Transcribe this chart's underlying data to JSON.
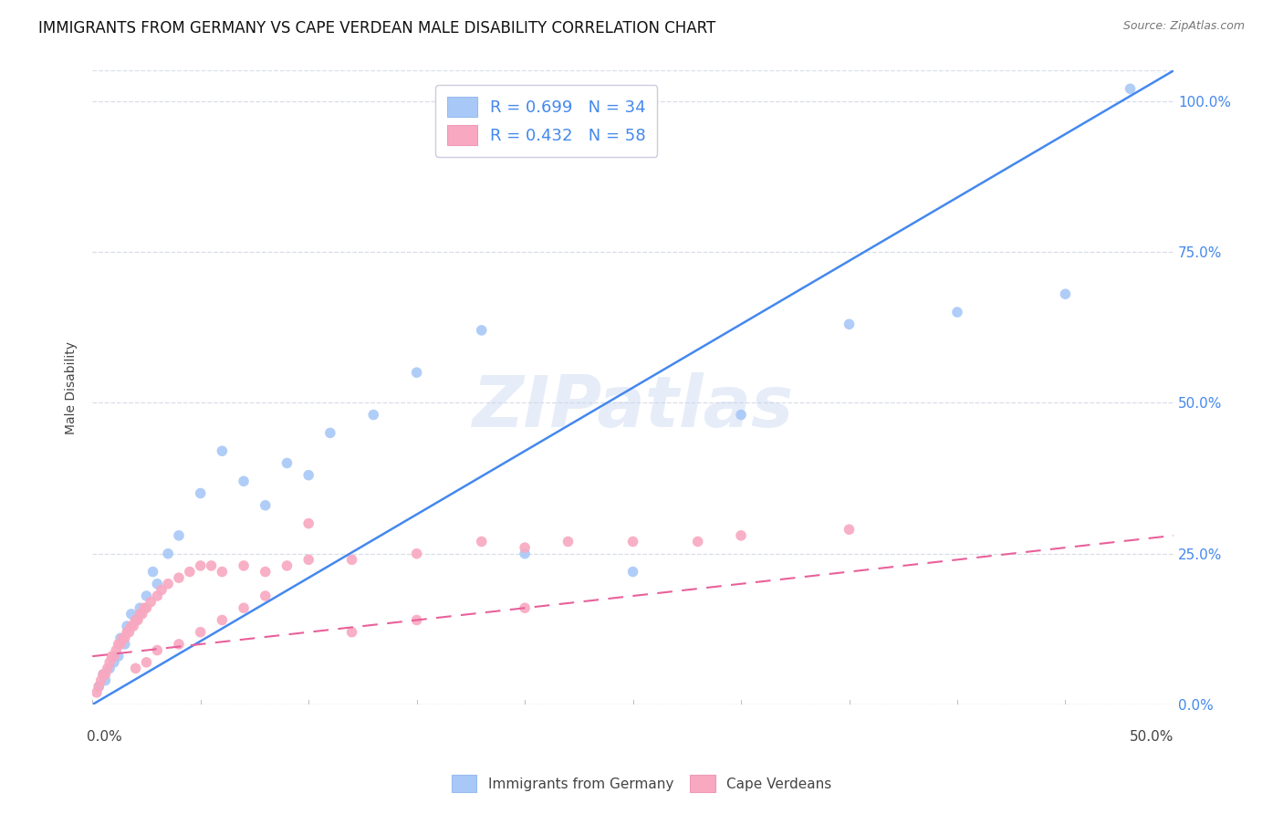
{
  "title": "IMMIGRANTS FROM GERMANY VS CAPE VERDEAN MALE DISABILITY CORRELATION CHART",
  "source": "Source: ZipAtlas.com",
  "ylabel": "Male Disability",
  "yticks": [
    "0.0%",
    "25.0%",
    "50.0%",
    "75.0%",
    "100.0%"
  ],
  "ytick_vals": [
    0,
    25,
    50,
    75,
    100
  ],
  "xlim": [
    0,
    50
  ],
  "ylim": [
    0,
    105
  ],
  "blue_color": "#a8c8f8",
  "blue_line_color": "#4488ee",
  "pink_color": "#f8a8c0",
  "pink_line_color": "#e8609a",
  "legend_R1": "R = 0.699",
  "legend_N1": "N = 34",
  "legend_R2": "R = 0.432",
  "legend_N2": "N = 58",
  "watermark": "ZIPatlas",
  "blue_scatter_x": [
    0.3,
    0.5,
    0.6,
    0.8,
    1.0,
    1.2,
    1.3,
    1.5,
    1.6,
    1.8,
    2.0,
    2.2,
    2.5,
    2.8,
    3.0,
    3.5,
    4.0,
    5.0,
    6.0,
    7.0,
    8.0,
    9.0,
    10.0,
    11.0,
    13.0,
    15.0,
    18.0,
    20.0,
    25.0,
    30.0,
    35.0,
    40.0,
    45.0,
    48.0
  ],
  "blue_scatter_y": [
    3,
    5,
    4,
    6,
    7,
    8,
    11,
    10,
    13,
    15,
    14,
    16,
    18,
    22,
    20,
    25,
    28,
    35,
    42,
    37,
    33,
    40,
    38,
    45,
    48,
    55,
    62,
    25,
    22,
    48,
    63,
    65,
    68,
    102
  ],
  "pink_scatter_x": [
    0.2,
    0.3,
    0.4,
    0.5,
    0.6,
    0.7,
    0.8,
    0.9,
    1.0,
    1.1,
    1.2,
    1.3,
    1.4,
    1.5,
    1.6,
    1.7,
    1.8,
    1.9,
    2.0,
    2.1,
    2.2,
    2.3,
    2.4,
    2.5,
    2.7,
    3.0,
    3.2,
    3.5,
    4.0,
    4.5,
    5.0,
    5.5,
    6.0,
    7.0,
    8.0,
    9.0,
    10.0,
    12.0,
    15.0,
    18.0,
    20.0,
    22.0,
    25.0,
    28.0,
    30.0,
    35.0,
    2.0,
    2.5,
    3.0,
    4.0,
    5.0,
    6.0,
    7.0,
    8.0,
    10.0,
    12.0,
    15.0,
    20.0
  ],
  "pink_scatter_y": [
    2,
    3,
    4,
    5,
    5,
    6,
    7,
    8,
    8,
    9,
    10,
    10,
    11,
    11,
    12,
    12,
    13,
    13,
    14,
    14,
    15,
    15,
    16,
    16,
    17,
    18,
    19,
    20,
    21,
    22,
    23,
    23,
    22,
    23,
    22,
    23,
    24,
    24,
    25,
    27,
    26,
    27,
    27,
    27,
    28,
    29,
    6,
    7,
    9,
    10,
    12,
    14,
    16,
    18,
    30,
    12,
    14,
    16
  ],
  "blue_line_x": [
    0,
    50
  ],
  "blue_line_y": [
    0,
    105
  ],
  "pink_line_x": [
    0,
    50
  ],
  "pink_line_y": [
    8,
    28
  ],
  "background_color": "#ffffff",
  "grid_color": "#d8dde8",
  "title_fontsize": 12,
  "axis_label_fontsize": 10,
  "tick_fontsize": 11
}
